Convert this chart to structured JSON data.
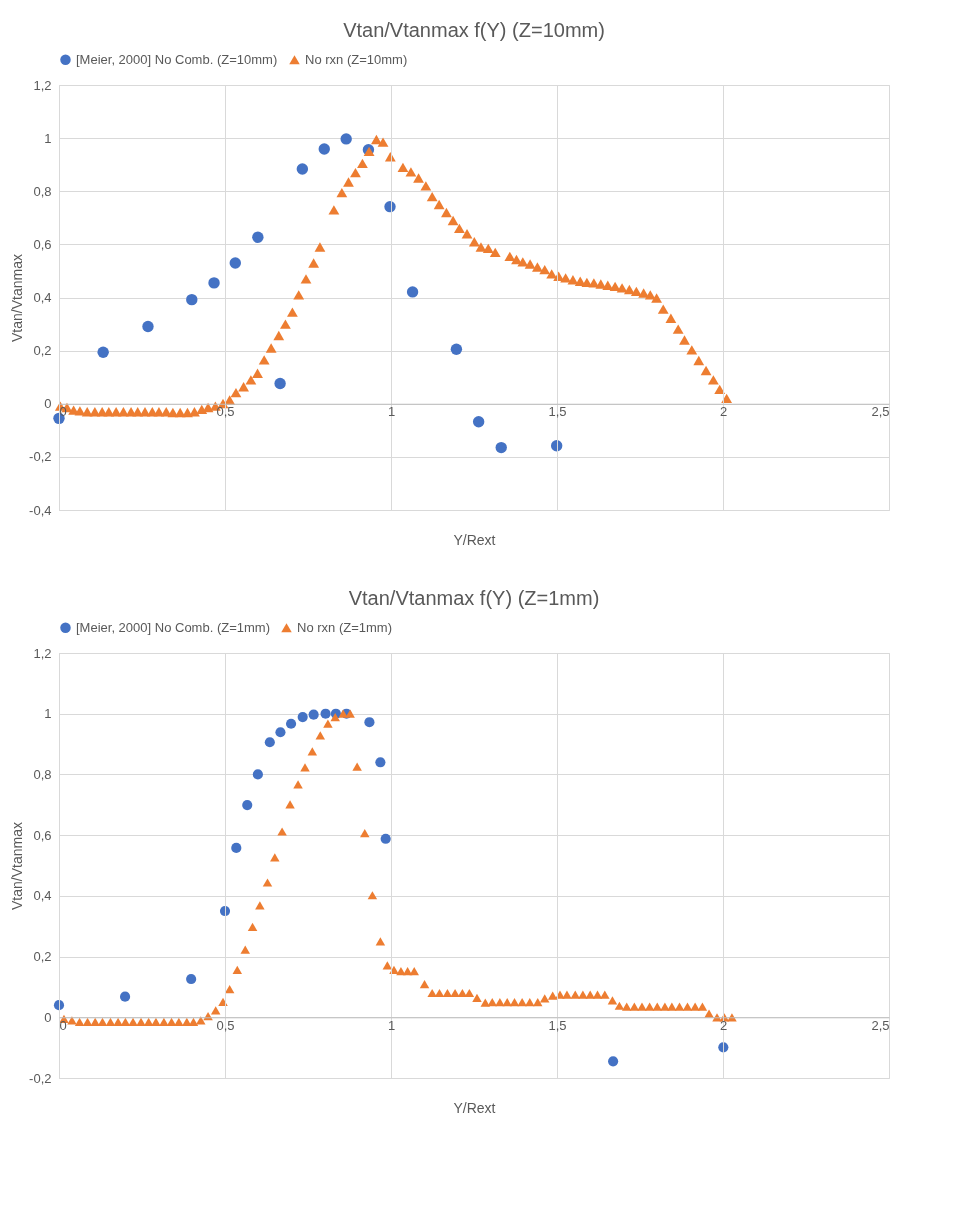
{
  "chart_data": [
    {
      "type": "scatter",
      "title": "Vtan/Vtanmax f(Y) (Z=10mm)",
      "xlabel": "Y/Rext",
      "ylabel": "Vtan/Vtanmax",
      "legend": "top",
      "grid": true,
      "xlim": [
        0,
        2.5
      ],
      "xticks": [
        0,
        {
          "value": 0.5,
          "label": "0,5"
        },
        1,
        {
          "value": 1.5,
          "label": "1,5"
        },
        2,
        {
          "value": 2.5,
          "label": "2,5"
        }
      ],
      "ylim": [
        -0.4,
        1.2
      ],
      "yticks": [
        {
          "value": -0.4,
          "label": "-0,4"
        },
        {
          "value": -0.2,
          "label": "-0,2"
        },
        0,
        {
          "value": 0.2,
          "label": "0,2"
        },
        {
          "value": 0.4,
          "label": "0,4"
        },
        {
          "value": 0.6,
          "label": "0,6"
        },
        {
          "value": 0.8,
          "label": "0,8"
        },
        1,
        {
          "value": 1.2,
          "label": "1,2"
        }
      ],
      "series": [
        {
          "name": "[Meier, 2000] No Comb. (Z=10mm)",
          "color": "#4472c4",
          "marker": "circle",
          "x": [
            0,
            0.133,
            0.268,
            0.4,
            0.467,
            0.531,
            0.599,
            0.666,
            0.733,
            0.799,
            0.865,
            0.932,
            0.997,
            1.065,
            1.197,
            1.264,
            1.332,
            1.499
          ],
          "values": [
            -0.055,
            0.194,
            0.291,
            0.392,
            0.455,
            0.53,
            0.627,
            0.076,
            0.884,
            0.959,
            0.997,
            0.956,
            0.742,
            0.421,
            0.205,
            -0.068,
            -0.165,
            -0.158
          ]
        },
        {
          "name": "No rxn (Z=10mm)",
          "color": "#ed7d31",
          "marker": "triangle",
          "x": [
            0.004,
            0.024,
            0.044,
            0.063,
            0.085,
            0.108,
            0.13,
            0.15,
            0.172,
            0.194,
            0.217,
            0.237,
            0.259,
            0.281,
            0.301,
            0.323,
            0.343,
            0.365,
            0.387,
            0.408,
            0.43,
            0.449,
            0.471,
            0.494,
            0.514,
            0.533,
            0.556,
            0.578,
            0.598,
            0.618,
            0.639,
            0.662,
            0.682,
            0.703,
            0.722,
            0.744,
            0.767,
            0.786,
            0.828,
            0.852,
            0.872,
            0.893,
            0.914,
            0.934,
            0.956,
            0.976,
            0.998,
            1.036,
            1.06,
            1.083,
            1.105,
            1.124,
            1.145,
            1.167,
            1.187,
            1.206,
            1.229,
            1.251,
            1.271,
            1.293,
            1.314,
            1.358,
            1.378,
            1.397,
            1.419,
            1.441,
            1.463,
            1.484,
            1.505,
            1.526,
            1.548,
            1.57,
            1.59,
            1.611,
            1.632,
            1.653,
            1.675,
            1.696,
            1.718,
            1.739,
            1.761,
            1.781,
            1.8,
            1.82,
            1.843,
            1.865,
            1.884,
            1.906,
            1.927,
            1.949,
            1.971,
            1.99,
            2.011
          ],
          "values": [
            -0.009,
            -0.014,
            -0.024,
            -0.027,
            -0.03,
            -0.03,
            -0.03,
            -0.03,
            -0.03,
            -0.03,
            -0.03,
            -0.03,
            -0.03,
            -0.03,
            -0.03,
            -0.03,
            -0.033,
            -0.033,
            -0.033,
            -0.03,
            -0.021,
            -0.014,
            -0.009,
            0.001,
            0.014,
            0.042,
            0.064,
            0.09,
            0.115,
            0.165,
            0.21,
            0.257,
            0.3,
            0.345,
            0.41,
            0.47,
            0.53,
            0.59,
            0.73,
            0.795,
            0.835,
            0.87,
            0.905,
            0.95,
            0.995,
            0.985,
            0.93,
            0.89,
            0.873,
            0.85,
            0.82,
            0.78,
            0.75,
            0.72,
            0.69,
            0.66,
            0.64,
            0.61,
            0.59,
            0.585,
            0.57,
            0.555,
            0.543,
            0.534,
            0.526,
            0.515,
            0.505,
            0.489,
            0.48,
            0.474,
            0.467,
            0.461,
            0.457,
            0.455,
            0.451,
            0.446,
            0.442,
            0.436,
            0.43,
            0.423,
            0.417,
            0.41,
            0.398,
            0.356,
            0.322,
            0.281,
            0.24,
            0.203,
            0.163,
            0.125,
            0.09,
            0.054,
            0.02
          ]
        }
      ]
    },
    {
      "type": "scatter",
      "title": "Vtan/Vtanmax f(Y) (Z=1mm)",
      "xlabel": "Y/Rext",
      "ylabel": "Vtan/Vtanmax",
      "legend": "top",
      "grid": true,
      "xlim": [
        0,
        2.5
      ],
      "xticks": [
        0,
        {
          "value": 0.5,
          "label": "0,5"
        },
        1,
        {
          "value": 1.5,
          "label": "1,5"
        },
        2,
        {
          "value": 2.5,
          "label": "2,5"
        }
      ],
      "ylim": [
        -0.2,
        1.2
      ],
      "yticks": [
        {
          "value": -0.2,
          "label": "-0,2"
        },
        0,
        {
          "value": 0.2,
          "label": "0,2"
        },
        {
          "value": 0.4,
          "label": "0,4"
        },
        {
          "value": 0.6,
          "label": "0,6"
        },
        {
          "value": 0.8,
          "label": "0,8"
        },
        1,
        {
          "value": 1.2,
          "label": "1,2"
        }
      ],
      "series": [
        {
          "name": "[Meier, 2000] No Comb. (Z=1mm)",
          "color": "#4472c4",
          "marker": "circle",
          "x": [
            0,
            0.199,
            0.398,
            0.5,
            0.534,
            0.567,
            0.599,
            0.635,
            0.667,
            0.699,
            0.734,
            0.767,
            0.803,
            0.834,
            0.866,
            0.935,
            0.968,
            0.984,
            1.669,
            2.001
          ],
          "values": [
            0.04,
            0.068,
            0.126,
            0.35,
            0.558,
            0.699,
            0.8,
            0.906,
            0.939,
            0.967,
            0.989,
            0.997,
            1.0,
            1.0,
            1.0,
            0.972,
            0.84,
            0.588,
            -0.145,
            -0.099
          ]
        },
        {
          "name": "No rxn (Z=1mm)",
          "color": "#ed7d31",
          "marker": "triangle",
          "x": [
            0.015,
            0.039,
            0.062,
            0.086,
            0.109,
            0.131,
            0.155,
            0.178,
            0.2,
            0.223,
            0.247,
            0.27,
            0.292,
            0.316,
            0.339,
            0.361,
            0.385,
            0.405,
            0.427,
            0.449,
            0.472,
            0.494,
            0.514,
            0.537,
            0.561,
            0.583,
            0.605,
            0.628,
            0.65,
            0.672,
            0.696,
            0.72,
            0.741,
            0.763,
            0.787,
            0.81,
            0.832,
            0.856,
            0.877,
            0.898,
            0.921,
            0.944,
            0.968,
            0.989,
            1.009,
            1.03,
            1.05,
            1.07,
            1.101,
            1.124,
            1.146,
            1.17,
            1.193,
            1.215,
            1.236,
            1.259,
            1.284,
            1.305,
            1.328,
            1.35,
            1.372,
            1.395,
            1.418,
            1.442,
            1.463,
            1.487,
            1.509,
            1.53,
            1.555,
            1.578,
            1.6,
            1.622,
            1.644,
            1.667,
            1.688,
            1.71,
            1.733,
            1.756,
            1.779,
            1.802,
            1.825,
            1.846,
            1.869,
            1.893,
            1.916,
            1.938,
            1.958,
            1.982,
            2.004,
            2.027
          ],
          "values": [
            -0.005,
            -0.01,
            -0.015,
            -0.015,
            -0.015,
            -0.015,
            -0.015,
            -0.015,
            -0.015,
            -0.015,
            -0.015,
            -0.015,
            -0.015,
            -0.015,
            -0.015,
            -0.015,
            -0.015,
            -0.015,
            -0.01,
            0.004,
            0.023,
            0.051,
            0.093,
            0.156,
            0.223,
            0.298,
            0.369,
            0.444,
            0.527,
            0.612,
            0.701,
            0.767,
            0.823,
            0.876,
            0.929,
            0.967,
            0.989,
            1.0,
            1.0,
            0.826,
            0.607,
            0.402,
            0.25,
            0.171,
            0.156,
            0.152,
            0.152,
            0.152,
            0.109,
            0.08,
            0.08,
            0.08,
            0.08,
            0.08,
            0.08,
            0.064,
            0.048,
            0.05,
            0.05,
            0.05,
            0.05,
            0.05,
            0.05,
            0.05,
            0.062,
            0.071,
            0.075,
            0.075,
            0.075,
            0.075,
            0.075,
            0.075,
            0.075,
            0.056,
            0.038,
            0.035,
            0.035,
            0.035,
            0.035,
            0.035,
            0.035,
            0.035,
            0.035,
            0.035,
            0.035,
            0.035,
            0.012,
            0,
            0,
            0
          ]
        }
      ]
    }
  ]
}
